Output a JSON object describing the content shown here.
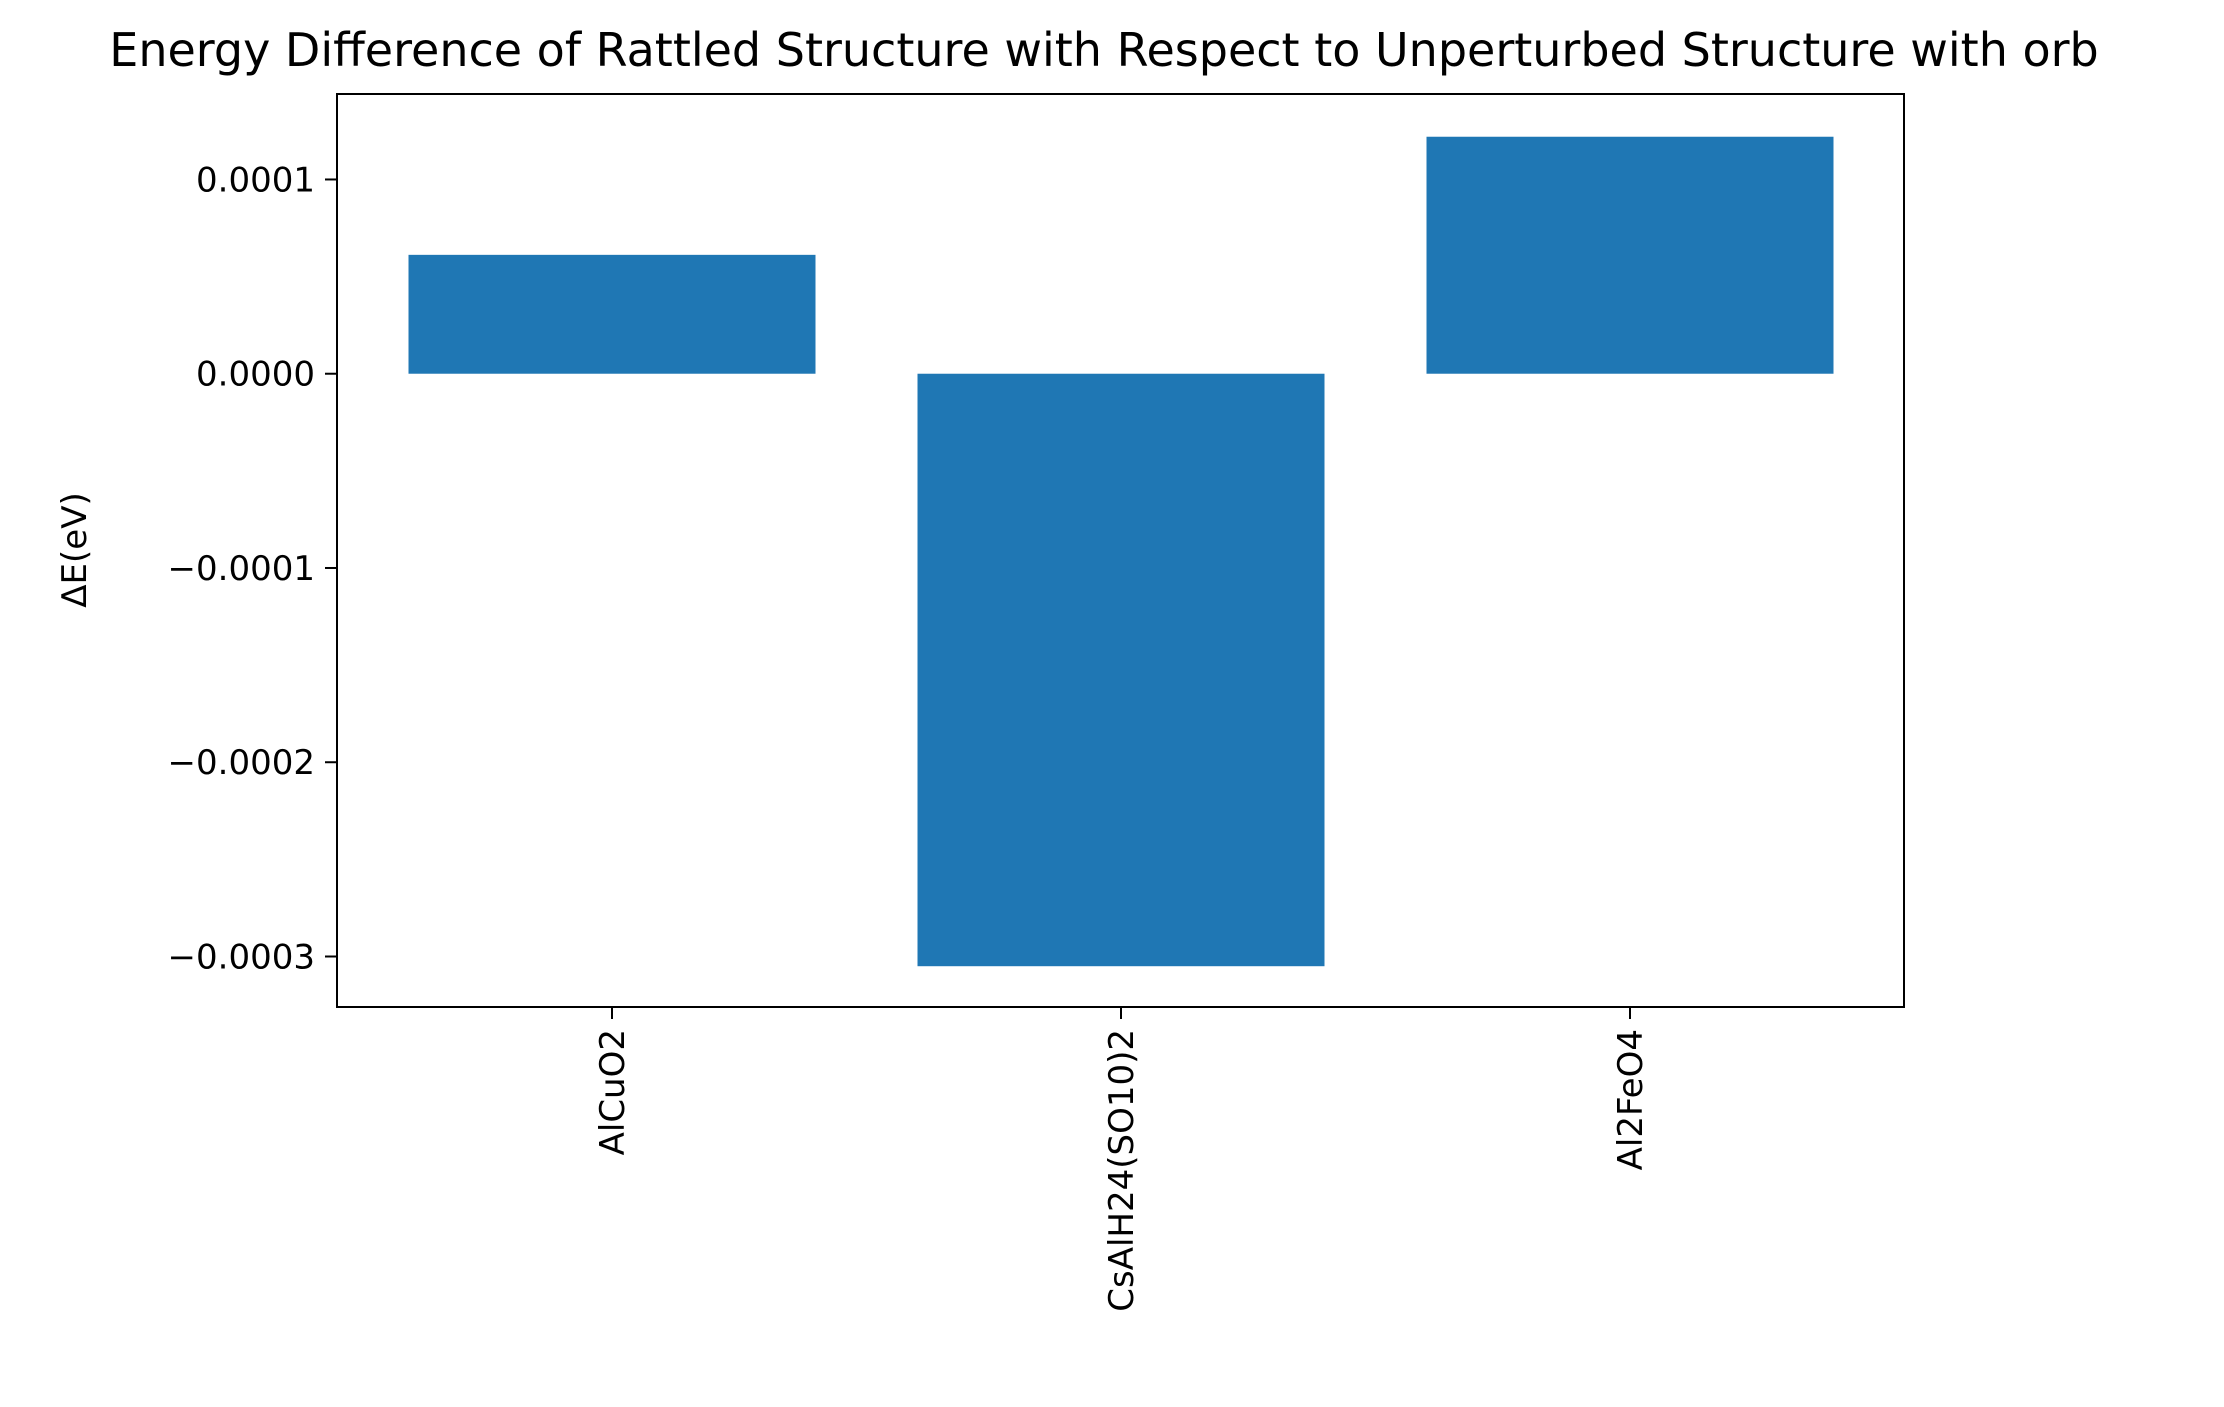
{
  "chart_data": {
    "type": "bar",
    "title": "Energy Difference of Rattled Structure with Respect to Unperturbed Structure with orb",
    "xlabel": "",
    "ylabel": "ΔE(eV)",
    "categories": [
      "AlCuO2",
      "CsAlH24(SO10)2",
      "Al2FeO4"
    ],
    "values": [
      6.12e-05,
      -0.000305,
      0.000122
    ],
    "yticks": [
      0.0001,
      0.0,
      -0.0001,
      -0.0002,
      -0.0003
    ],
    "ytick_labels": [
      "0.0001",
      "0.0000",
      "−0.0001",
      "−0.0002",
      "−0.0003"
    ],
    "ylim": [
      -0.000326,
      0.000144
    ],
    "bar_color": "#1f77b4",
    "grid": false,
    "legend": "none"
  }
}
